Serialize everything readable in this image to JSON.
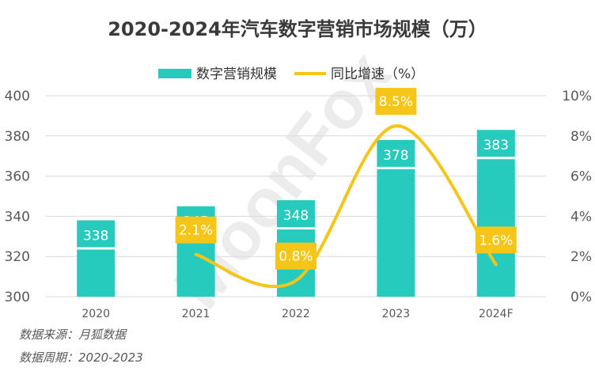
{
  "chart_data": {
    "type": "bar",
    "title": "2020-2024年汽车数字营销市场规模（万）",
    "categories": [
      "2020",
      "2021",
      "2022",
      "2023",
      "2024F"
    ],
    "series": [
      {
        "name": "数字营销规模",
        "type": "bar",
        "axis": "left",
        "color": "#26cbbd",
        "values": [
          338,
          345,
          348,
          378,
          383
        ],
        "labels": [
          "338",
          "345",
          "348",
          "378",
          "383"
        ]
      },
      {
        "name": "同比增速（%）",
        "type": "line",
        "axis": "right",
        "color": "#f5c518",
        "values": [
          null,
          2.1,
          0.8,
          8.5,
          1.6
        ],
        "labels": [
          null,
          "2.1%",
          "0.8%",
          "8.5%",
          "1.6%"
        ]
      }
    ],
    "y_left": {
      "ylim": [
        300,
        400
      ],
      "ticks": [
        "300",
        "320",
        "340",
        "360",
        "380",
        "400"
      ]
    },
    "y_right": {
      "ylim": [
        0,
        10
      ],
      "ticks": [
        "0%",
        "2%",
        "4%",
        "6%",
        "8%",
        "10%"
      ]
    },
    "legend": "top-center",
    "grid": true,
    "colors": {
      "bar": "#26cbbd",
      "line": "#f5c518",
      "rate_box": "#f5c518",
      "grid": "#d9d9d9"
    }
  },
  "footer": {
    "source": "数据来源：月狐数据",
    "period": "数据周期：2020-2023"
  },
  "watermark": "MoonFox"
}
